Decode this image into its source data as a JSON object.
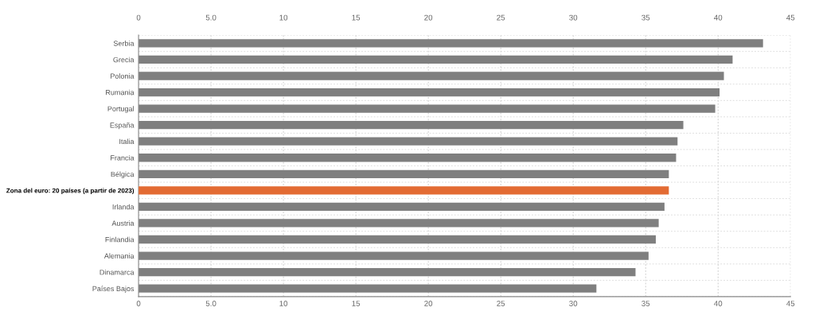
{
  "chart_data": {
    "type": "bar",
    "orientation": "horizontal",
    "categories": [
      "Serbia",
      "Grecia",
      "Polonia",
      "Rumania",
      "Portugal",
      "España",
      "Italia",
      "Francia",
      "Bélgica",
      "Zona del euro: 20 países (a partir de 2023)",
      "Irlanda",
      "Austria",
      "Finlandia",
      "Alemania",
      "Dinamarca",
      "Países Bajos"
    ],
    "values": [
      43.1,
      41.0,
      40.4,
      40.1,
      39.8,
      37.6,
      37.2,
      37.1,
      36.6,
      36.6,
      36.3,
      35.9,
      35.7,
      35.2,
      34.3,
      31.6
    ],
    "colors": [
      "#7f7f7f",
      "#7f7f7f",
      "#7f7f7f",
      "#7f7f7f",
      "#7f7f7f",
      "#7f7f7f",
      "#7f7f7f",
      "#7f7f7f",
      "#7f7f7f",
      "#e36b33",
      "#7f7f7f",
      "#7f7f7f",
      "#7f7f7f",
      "#7f7f7f",
      "#7f7f7f",
      "#7f7f7f"
    ],
    "xlim": [
      0,
      45
    ],
    "xticks": [
      0,
      {
        "value": 5,
        "label": "5.0"
      },
      10,
      15,
      20,
      25,
      30,
      35,
      40,
      45
    ],
    "x2lim": [
      0,
      45
    ],
    "x2ticks": [
      0,
      {
        "value": 5,
        "label": "5.0"
      },
      10,
      15,
      20,
      25,
      30,
      35,
      40,
      45
    ],
    "grid": true
  }
}
